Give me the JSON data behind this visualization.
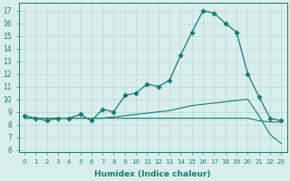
{
  "xlabel": "Humidex (Indice chaleur)",
  "x_values": [
    0,
    1,
    2,
    3,
    4,
    5,
    6,
    7,
    8,
    9,
    10,
    11,
    12,
    13,
    14,
    15,
    16,
    17,
    18,
    19,
    20,
    21,
    22,
    23
  ],
  "zigzag_line": [
    8.7,
    8.5,
    8.3,
    8.5,
    8.5,
    8.8,
    8.3,
    9.2,
    9.0,
    10.3,
    10.5,
    11.2,
    11.0,
    11.5,
    13.5,
    15.3,
    17.0,
    16.8,
    16.0,
    15.3,
    12.0,
    10.2,
    8.5,
    8.3
  ],
  "line_flat": [
    8.5,
    8.5,
    8.5,
    8.5,
    8.5,
    8.5,
    8.5,
    8.5,
    8.5,
    8.5,
    8.5,
    8.5,
    8.5,
    8.5,
    8.5,
    8.5,
    8.5,
    8.5,
    8.5,
    8.5,
    8.5,
    8.3,
    8.2,
    8.2
  ],
  "line_rise": [
    8.5,
    8.5,
    8.5,
    8.5,
    8.5,
    8.5,
    8.5,
    8.5,
    8.6,
    8.7,
    8.8,
    8.9,
    9.0,
    9.1,
    9.3,
    9.5,
    9.6,
    9.7,
    9.8,
    9.9,
    10.0,
    8.7,
    7.2,
    6.5
  ],
  "line_color": "#1a7a6e",
  "bg_color": "#d8eeec",
  "grid_color": "#b5d8d4",
  "ylim": [
    6,
    17.5
  ],
  "yticks": [
    6,
    7,
    8,
    9,
    10,
    11,
    12,
    13,
    14,
    15,
    16,
    17
  ],
  "xlim": [
    0,
    23
  ]
}
